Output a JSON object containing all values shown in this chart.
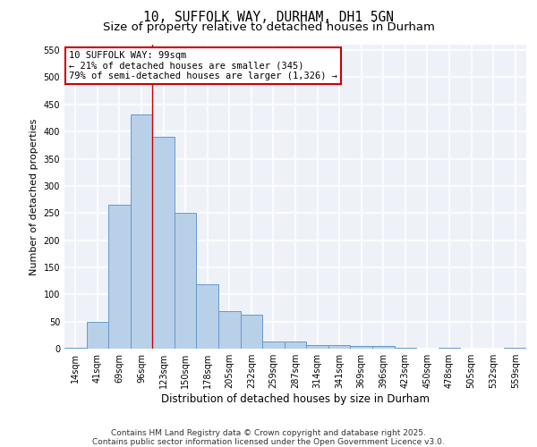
{
  "title1": "10, SUFFOLK WAY, DURHAM, DH1 5GN",
  "title2": "Size of property relative to detached houses in Durham",
  "xlabel": "Distribution of detached houses by size in Durham",
  "ylabel": "Number of detached properties",
  "bar_color": "#b8d0e8",
  "bar_edge_color": "#6699cc",
  "categories": [
    "14sqm",
    "41sqm",
    "69sqm",
    "96sqm",
    "123sqm",
    "150sqm",
    "178sqm",
    "205sqm",
    "232sqm",
    "259sqm",
    "287sqm",
    "314sqm",
    "341sqm",
    "369sqm",
    "396sqm",
    "423sqm",
    "450sqm",
    "478sqm",
    "505sqm",
    "532sqm",
    "559sqm"
  ],
  "values": [
    2,
    50,
    265,
    432,
    390,
    250,
    118,
    70,
    62,
    14,
    14,
    7,
    7,
    5,
    5,
    2,
    0,
    2,
    0,
    0,
    2
  ],
  "ylim": [
    0,
    560
  ],
  "yticks": [
    0,
    50,
    100,
    150,
    200,
    250,
    300,
    350,
    400,
    450,
    500,
    550
  ],
  "annotation_text": "10 SUFFOLK WAY: 99sqm\n← 21% of detached houses are smaller (345)\n79% of semi-detached houses are larger (1,326) →",
  "vline_x": 3.5,
  "box_color": "#cc0000",
  "background_color": "#eef2f8",
  "grid_color": "#ffffff",
  "footer_text": "Contains HM Land Registry data © Crown copyright and database right 2025.\nContains public sector information licensed under the Open Government Licence v3.0.",
  "title1_fontsize": 10.5,
  "title2_fontsize": 9.5,
  "xlabel_fontsize": 8.5,
  "ylabel_fontsize": 8,
  "tick_fontsize": 7,
  "annotation_fontsize": 7.5,
  "footer_fontsize": 6.5
}
